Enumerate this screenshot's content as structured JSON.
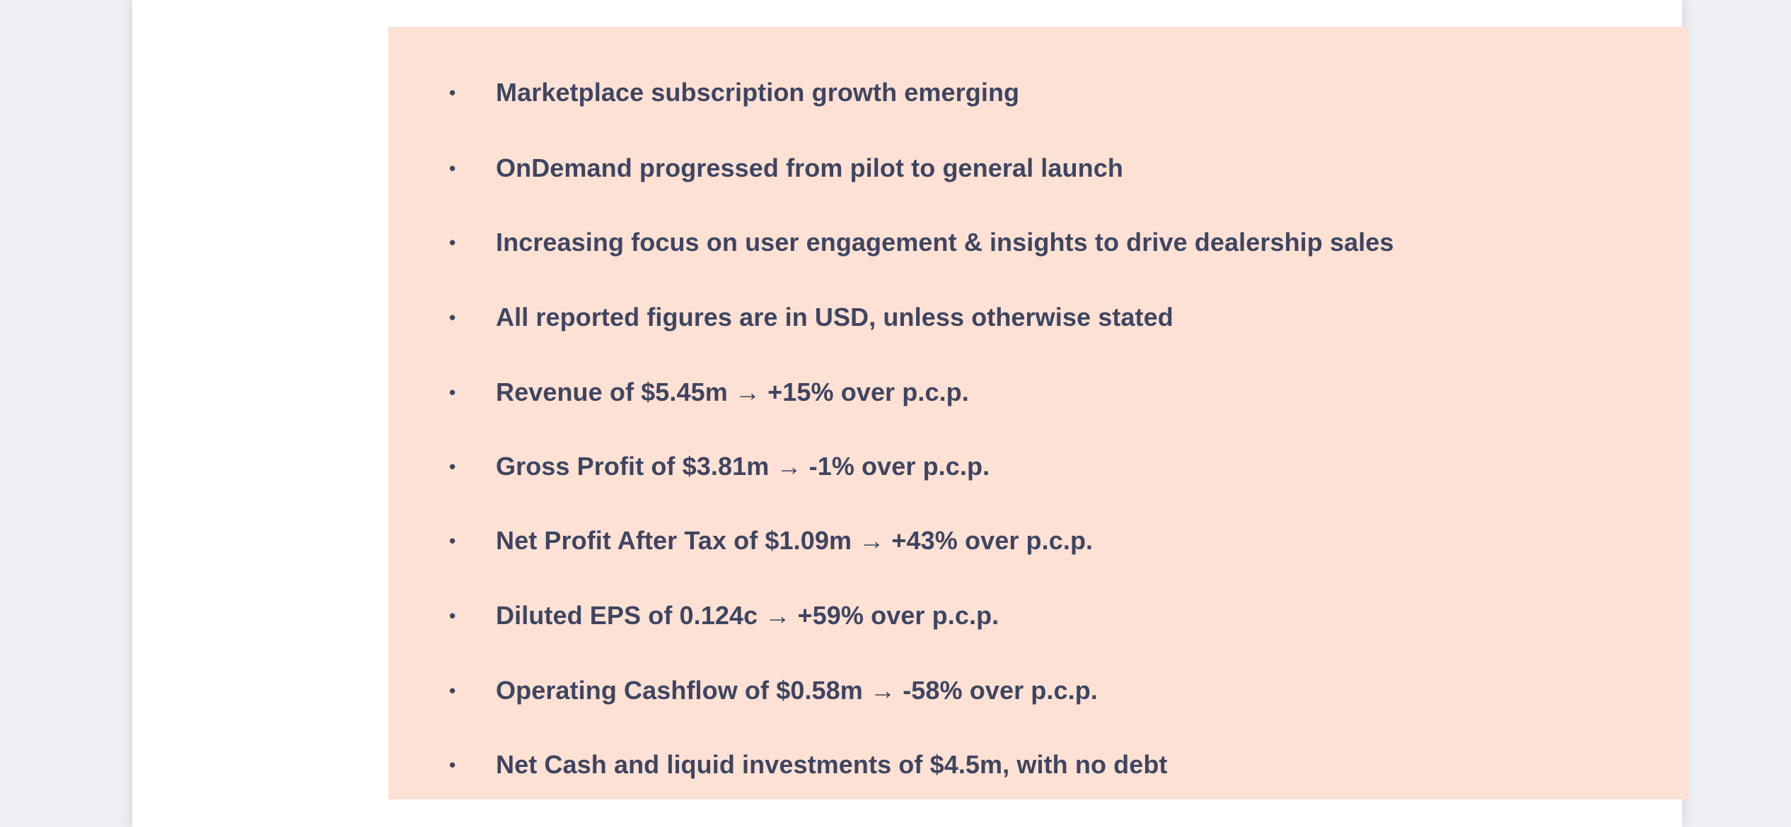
{
  "document": {
    "bullet_symbol": "•",
    "bullets": [
      {
        "text": "Marketplace subscription growth emerging"
      },
      {
        "text": "OnDemand progressed from pilot to general launch"
      },
      {
        "text": "Increasing focus on user engagement & insights to drive dealership sales"
      },
      {
        "text": "All reported figures are in USD, unless otherwise stated"
      },
      {
        "text": "Revenue of $5.45m → +15% over p.c.p."
      },
      {
        "text": "Gross Profit of $3.81m → -1% over p.c.p."
      },
      {
        "text": "Net Profit After Tax of $1.09m → +43% over p.c.p."
      },
      {
        "text": "Diluted EPS of 0.124c → +59% over p.c.p."
      },
      {
        "text": "Operating Cashflow of $0.58m → -58% over p.c.p."
      },
      {
        "text": "Net Cash and liquid investments of $4.5m, with no debt"
      }
    ]
  },
  "colors": {
    "viewer_background": "#efeff3",
    "page_background": "#ffffff",
    "highlight_box": "#fde1d4",
    "text": "#3f4560"
  }
}
